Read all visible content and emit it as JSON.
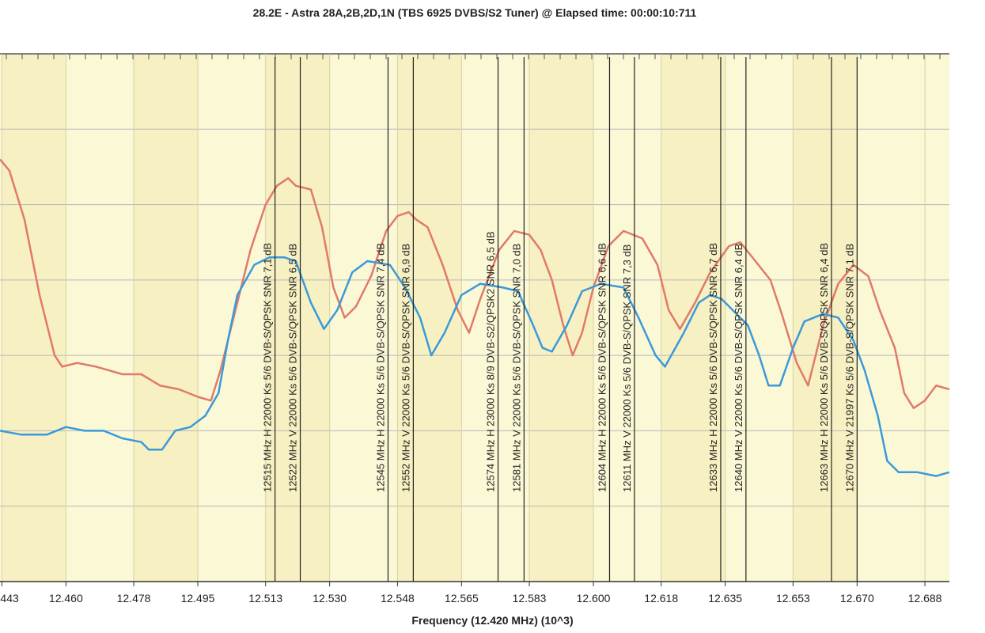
{
  "chart_data": {
    "type": "line",
    "title": "28.2E - Astra 28A,2B,2D,1N (TBS 6925 DVBS/S2 Tuner) @ Elapsed time: 00:00:10:711",
    "xlabel": "Frequency (12.420 MHz) (10^3)",
    "ylabel": "",
    "xlim": [
      12.4425,
      12.6945
    ],
    "ylim": [
      0,
      7
    ],
    "x_ticks": [
      12.443,
      12.46,
      12.478,
      12.495,
      12.513,
      12.53,
      12.548,
      12.565,
      12.583,
      12.6,
      12.618,
      12.635,
      12.653,
      12.67,
      12.688
    ],
    "x_tick_labels": [
      "12.443",
      "12.460",
      "12.478",
      "12.495",
      "12.513",
      "12.530",
      "12.548",
      "12.565",
      "12.583",
      "12.600",
      "12.618",
      "12.635",
      "12.653",
      "12.670",
      "12.688"
    ],
    "y_gridlines": [
      1,
      2,
      3,
      4,
      5,
      6
    ],
    "series": [
      {
        "name": "Red trace",
        "color": "#e07a6a",
        "points": [
          [
            12.4425,
            5.6
          ],
          [
            12.445,
            5.45
          ],
          [
            12.449,
            4.8
          ],
          [
            12.453,
            3.8
          ],
          [
            12.457,
            3.0
          ],
          [
            12.459,
            2.85
          ],
          [
            12.463,
            2.9
          ],
          [
            12.468,
            2.85
          ],
          [
            12.475,
            2.75
          ],
          [
            12.48,
            2.75
          ],
          [
            12.485,
            2.6
          ],
          [
            12.49,
            2.55
          ],
          [
            12.495,
            2.45
          ],
          [
            12.4985,
            2.4
          ],
          [
            12.501,
            2.8
          ],
          [
            12.505,
            3.6
          ],
          [
            12.509,
            4.4
          ],
          [
            12.513,
            5.0
          ],
          [
            12.516,
            5.25
          ],
          [
            12.519,
            5.35
          ],
          [
            12.521,
            5.25
          ],
          [
            12.525,
            5.2
          ],
          [
            12.528,
            4.7
          ],
          [
            12.531,
            3.9
          ],
          [
            12.534,
            3.5
          ],
          [
            12.537,
            3.65
          ],
          [
            12.541,
            4.05
          ],
          [
            12.545,
            4.65
          ],
          [
            12.548,
            4.85
          ],
          [
            12.551,
            4.9
          ],
          [
            12.553,
            4.8
          ],
          [
            12.556,
            4.7
          ],
          [
            12.56,
            4.2
          ],
          [
            12.564,
            3.6
          ],
          [
            12.567,
            3.3
          ],
          [
            12.57,
            3.75
          ],
          [
            12.575,
            4.4
          ],
          [
            12.579,
            4.65
          ],
          [
            12.583,
            4.6
          ],
          [
            12.586,
            4.4
          ],
          [
            12.589,
            4.0
          ],
          [
            12.592,
            3.4
          ],
          [
            12.5945,
            3.0
          ],
          [
            12.597,
            3.3
          ],
          [
            12.6,
            3.9
          ],
          [
            12.604,
            4.45
          ],
          [
            12.608,
            4.65
          ],
          [
            12.613,
            4.55
          ],
          [
            12.617,
            4.2
          ],
          [
            12.62,
            3.6
          ],
          [
            12.623,
            3.35
          ],
          [
            12.627,
            3.7
          ],
          [
            12.631,
            4.1
          ],
          [
            12.636,
            4.45
          ],
          [
            12.639,
            4.5
          ],
          [
            12.643,
            4.25
          ],
          [
            12.647,
            4.0
          ],
          [
            12.65,
            3.55
          ],
          [
            12.654,
            2.9
          ],
          [
            12.657,
            2.6
          ],
          [
            12.661,
            3.4
          ],
          [
            12.665,
            3.95
          ],
          [
            12.669,
            4.2
          ],
          [
            12.673,
            4.05
          ],
          [
            12.676,
            3.6
          ],
          [
            12.68,
            3.1
          ],
          [
            12.6825,
            2.5
          ],
          [
            12.685,
            2.3
          ],
          [
            12.688,
            2.4
          ],
          [
            12.691,
            2.6
          ],
          [
            12.6945,
            2.55
          ]
        ]
      },
      {
        "name": "Blue trace",
        "color": "#3a9ad9",
        "points": [
          [
            12.4425,
            2.0
          ],
          [
            12.448,
            1.95
          ],
          [
            12.455,
            1.95
          ],
          [
            12.46,
            2.05
          ],
          [
            12.465,
            2.0
          ],
          [
            12.47,
            2.0
          ],
          [
            12.475,
            1.9
          ],
          [
            12.48,
            1.85
          ],
          [
            12.482,
            1.75
          ],
          [
            12.4855,
            1.75
          ],
          [
            12.489,
            2.0
          ],
          [
            12.493,
            2.05
          ],
          [
            12.497,
            2.2
          ],
          [
            12.5005,
            2.5
          ],
          [
            12.503,
            3.2
          ],
          [
            12.5055,
            3.8
          ],
          [
            12.51,
            4.2
          ],
          [
            12.514,
            4.3
          ],
          [
            12.518,
            4.3
          ],
          [
            12.521,
            4.25
          ],
          [
            12.525,
            3.7
          ],
          [
            12.5285,
            3.35
          ],
          [
            12.532,
            3.6
          ],
          [
            12.536,
            4.1
          ],
          [
            12.54,
            4.25
          ],
          [
            12.546,
            4.2
          ],
          [
            12.55,
            3.9
          ],
          [
            12.554,
            3.5
          ],
          [
            12.557,
            3.0
          ],
          [
            12.5605,
            3.3
          ],
          [
            12.565,
            3.8
          ],
          [
            12.57,
            3.95
          ],
          [
            12.576,
            3.9
          ],
          [
            12.58,
            3.85
          ],
          [
            12.584,
            3.4
          ],
          [
            12.5865,
            3.1
          ],
          [
            12.589,
            3.05
          ],
          [
            12.593,
            3.4
          ],
          [
            12.597,
            3.85
          ],
          [
            12.602,
            3.95
          ],
          [
            12.608,
            3.9
          ],
          [
            12.612,
            3.5
          ],
          [
            12.6165,
            3.0
          ],
          [
            12.619,
            2.85
          ],
          [
            12.624,
            3.3
          ],
          [
            12.628,
            3.7
          ],
          [
            12.631,
            3.8
          ],
          [
            12.634,
            3.75
          ],
          [
            12.637,
            3.6
          ],
          [
            12.641,
            3.4
          ],
          [
            12.644,
            3.0
          ],
          [
            12.6465,
            2.6
          ],
          [
            12.6495,
            2.6
          ],
          [
            12.653,
            3.1
          ],
          [
            12.656,
            3.45
          ],
          [
            12.661,
            3.55
          ],
          [
            12.665,
            3.5
          ],
          [
            12.669,
            3.2
          ],
          [
            12.672,
            2.8
          ],
          [
            12.6755,
            2.2
          ],
          [
            12.678,
            1.6
          ],
          [
            12.681,
            1.45
          ],
          [
            12.686,
            1.45
          ],
          [
            12.691,
            1.4
          ],
          [
            12.6945,
            1.45
          ]
        ]
      }
    ],
    "markers": [
      {
        "x": 12.5155,
        "label": "12515 MHz H 22000 Ks 5/6 DVB-S/QPSK SNR 7,1 dB"
      },
      {
        "x": 12.5222,
        "label": "12522 MHz V 22000 Ks 5/6 DVB-S/QPSK SNR 6,5 dB"
      },
      {
        "x": 12.5455,
        "label": "12545 MHz H 22000 Ks 5/6 DVB-S/QPSK SNR 7,4 dB"
      },
      {
        "x": 12.5522,
        "label": "12552 MHz V 22000 Ks 5/6 DVB-S/QPSK SNR 6,9 dB"
      },
      {
        "x": 12.5747,
        "label": "12574 MHz H 23000 Ks 8/9 DVB-S2/QPSK2 SNR 6,5 dB"
      },
      {
        "x": 12.5816,
        "label": "12581 MHz V 22000 Ks 5/6 DVB-S/QPSK SNR 7,0 dB"
      },
      {
        "x": 12.6043,
        "label": "12604 MHz H 22000 Ks 5/6 DVB-S/QPSK SNR 6,6 dB"
      },
      {
        "x": 12.6109,
        "label": "12611 MHz V 22000 Ks 5/6 DVB-S/QPSK SNR 7,3 dB"
      },
      {
        "x": 12.6338,
        "label": "12633 MHz H 22000 Ks 5/6 DVB-S/QPSK SNR 6,7 dB"
      },
      {
        "x": 12.6405,
        "label": "12640 MHz V 22000 Ks 5/6 DVB-S/QPSK SNR 6,4 dB"
      },
      {
        "x": 12.6632,
        "label": "12663 MHz H 22000 Ks 5/6 DVB-S/QPSK SNR 6,4 dB"
      },
      {
        "x": 12.67,
        "label": "12670 MHz V 21997 Ks 5/6 DVB-S/QPSK SNR 7,1 dB"
      }
    ]
  },
  "colors": {
    "plot_background": "#fbf8d6",
    "band_background": "#f7f0c2",
    "grid": "#b8b8b8",
    "marker_line": "#222222"
  }
}
